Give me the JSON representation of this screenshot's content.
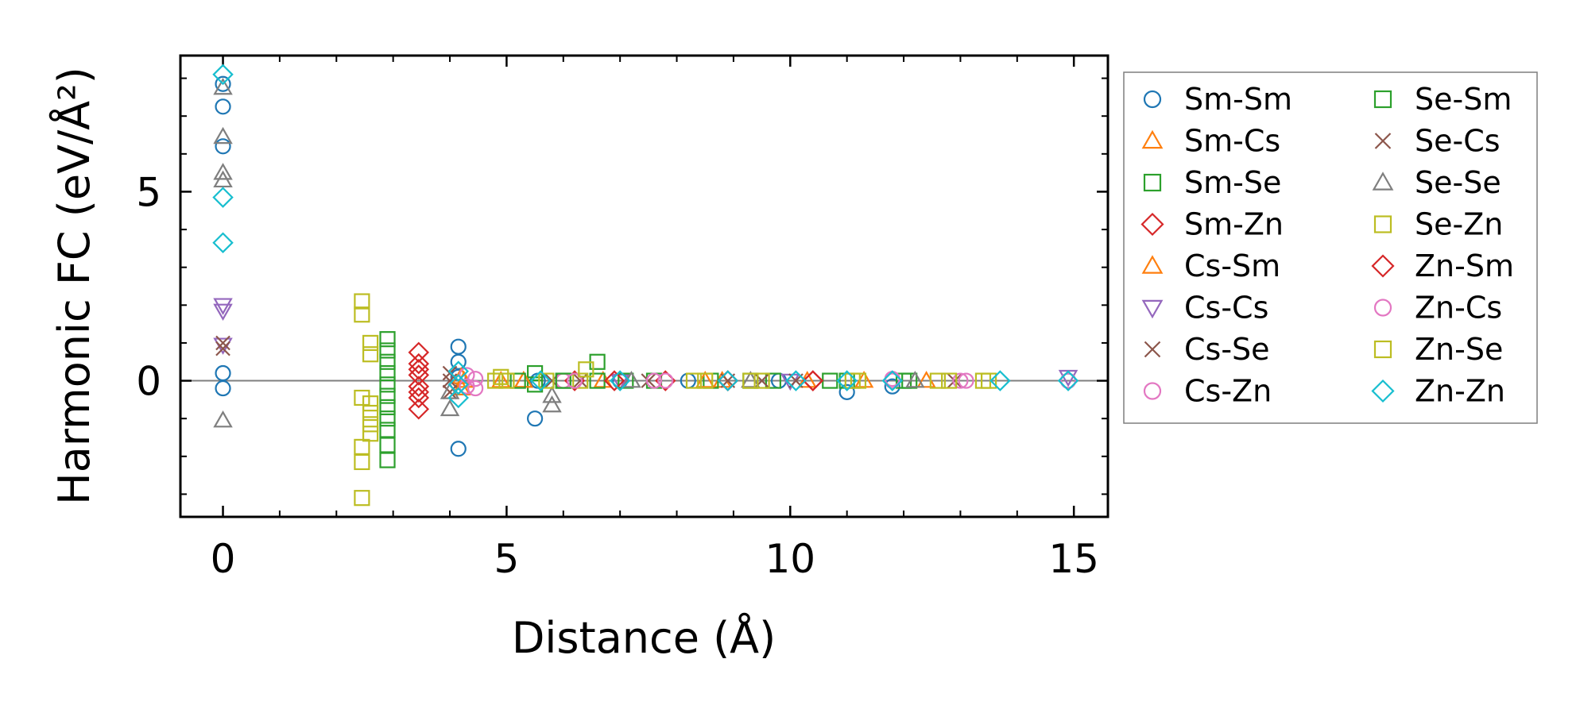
{
  "chart_data": {
    "type": "scatter",
    "title": "",
    "xlabel": "Distance (Å)",
    "ylabel": "Harmonic FC (eV/Å²)",
    "xlim": [
      -0.75,
      15.6
    ],
    "ylim": [
      -3.6,
      8.6
    ],
    "xticks": [
      0,
      5,
      10,
      15
    ],
    "xtick_labels": [
      "0",
      "5",
      "10",
      "15"
    ],
    "yticks": [
      0,
      5
    ],
    "ytick_labels": [
      "0",
      "5"
    ],
    "zero_line": true,
    "grid": false,
    "legend_location": "outside-right",
    "series": [
      {
        "name": "Sm-Sm",
        "marker": "circle",
        "color": "#1f77b4",
        "points": [
          [
            0,
            7.85
          ],
          [
            0,
            7.25
          ],
          [
            0,
            6.2
          ],
          [
            0,
            0.2
          ],
          [
            0,
            -0.2
          ],
          [
            4.15,
            0.9
          ],
          [
            4.15,
            0.5
          ],
          [
            4.15,
            0.1
          ],
          [
            4.15,
            -1.8
          ],
          [
            5.5,
            -1.0
          ],
          [
            5.55,
            0
          ],
          [
            7.0,
            0
          ],
          [
            8.2,
            0
          ],
          [
            9.8,
            0
          ],
          [
            11.0,
            -0.3
          ],
          [
            11.8,
            -0.15
          ],
          [
            14.9,
            0
          ]
        ]
      },
      {
        "name": "Sm-Cs",
        "marker": "triangle-up",
        "color": "#ff7f0e",
        "points": [
          [
            4.2,
            0.1
          ],
          [
            4.2,
            -0.2
          ],
          [
            4.9,
            0
          ],
          [
            5.3,
            0
          ],
          [
            6.7,
            0
          ],
          [
            8.8,
            0
          ],
          [
            10.3,
            0
          ],
          [
            12.4,
            0
          ]
        ]
      },
      {
        "name": "Sm-Se",
        "marker": "square",
        "color": "#2ca02c",
        "points": [
          [
            2.9,
            1.1
          ],
          [
            2.9,
            0.8
          ],
          [
            2.9,
            0.5
          ],
          [
            2.9,
            0.2
          ],
          [
            2.9,
            -0.1
          ],
          [
            2.9,
            -0.4
          ],
          [
            2.9,
            -0.7
          ],
          [
            2.9,
            -1.0
          ],
          [
            2.9,
            -1.3
          ],
          [
            2.9,
            -1.7
          ],
          [
            2.9,
            -2.1
          ],
          [
            5.5,
            0.2
          ],
          [
            5.5,
            -0.1
          ],
          [
            6.0,
            0
          ],
          [
            6.6,
            0
          ],
          [
            7.6,
            0
          ],
          [
            8.6,
            0
          ],
          [
            9.7,
            0
          ],
          [
            10.7,
            0
          ],
          [
            12.0,
            0
          ]
        ]
      },
      {
        "name": "Sm-Zn",
        "marker": "diamond",
        "color": "#d62728",
        "points": [
          [
            3.45,
            0.75
          ],
          [
            3.45,
            0.45
          ],
          [
            3.45,
            0.15
          ],
          [
            3.45,
            -0.15
          ],
          [
            3.45,
            -0.45
          ],
          [
            3.45,
            -0.75
          ],
          [
            6.2,
            0
          ],
          [
            7.8,
            0
          ],
          [
            8.9,
            0
          ],
          [
            10.4,
            0
          ]
        ]
      },
      {
        "name": "Cs-Sm",
        "marker": "triangle-up",
        "color": "#ff7f0e",
        "points": [
          [
            4.25,
            0
          ],
          [
            5.3,
            0
          ],
          [
            8.5,
            0
          ],
          [
            11.3,
            0
          ]
        ]
      },
      {
        "name": "Cs-Cs",
        "marker": "triangle-down",
        "color": "#9467bd",
        "points": [
          [
            0,
            2.0
          ],
          [
            0,
            1.85
          ],
          [
            0,
            0.95
          ],
          [
            7.0,
            0
          ],
          [
            10.0,
            0
          ],
          [
            14.9,
            0.1
          ]
        ]
      },
      {
        "name": "Cs-Se",
        "marker": "x",
        "color": "#8c564b",
        "points": [
          [
            0,
            1.0
          ],
          [
            0,
            0.85
          ],
          [
            4.0,
            0
          ],
          [
            4.0,
            -0.3
          ],
          [
            5.8,
            0
          ],
          [
            7.5,
            0
          ],
          [
            9.5,
            0
          ],
          [
            12.9,
            0
          ]
        ]
      },
      {
        "name": "Cs-Zn",
        "marker": "circle",
        "color": "#e377c2",
        "points": [
          [
            4.3,
            0.15
          ],
          [
            4.3,
            -0.15
          ],
          [
            4.45,
            0.05
          ],
          [
            6.0,
            0
          ],
          [
            7.8,
            0
          ],
          [
            11.8,
            0
          ],
          [
            13.1,
            0
          ],
          [
            14.9,
            0
          ]
        ]
      },
      {
        "name": "Se-Sm",
        "marker": "square",
        "color": "#2ca02c",
        "points": [
          [
            5.2,
            0
          ],
          [
            6.0,
            0
          ],
          [
            6.6,
            0.5
          ],
          [
            7.1,
            0
          ],
          [
            9.3,
            0
          ],
          [
            11.0,
            0
          ],
          [
            12.1,
            0
          ]
        ]
      },
      {
        "name": "Se-Cs",
        "marker": "x",
        "color": "#8c564b",
        "points": [
          [
            4.0,
            0.2
          ],
          [
            6.3,
            0
          ],
          [
            8.9,
            0
          ],
          [
            10.1,
            0
          ]
        ]
      },
      {
        "name": "Se-Se",
        "marker": "triangle-up",
        "color": "#7f7f7f",
        "points": [
          [
            0,
            7.75
          ],
          [
            0,
            6.45
          ],
          [
            0,
            5.5
          ],
          [
            0,
            5.3
          ],
          [
            0,
            -1.05
          ],
          [
            4.0,
            -0.3
          ],
          [
            4.0,
            -0.75
          ],
          [
            5.8,
            -0.4
          ],
          [
            5.8,
            -0.65
          ],
          [
            7.2,
            0
          ],
          [
            9.3,
            0
          ],
          [
            12.2,
            0
          ]
        ]
      },
      {
        "name": "Se-Zn",
        "marker": "square",
        "color": "#bcbd22",
        "points": [
          [
            2.45,
            2.1
          ],
          [
            2.45,
            1.75
          ],
          [
            2.45,
            -0.45
          ],
          [
            2.45,
            -1.75
          ],
          [
            2.45,
            -2.15
          ],
          [
            2.45,
            -3.1
          ],
          [
            4.8,
            0
          ],
          [
            5.0,
            0
          ],
          [
            5.7,
            0
          ],
          [
            6.3,
            0
          ],
          [
            8.3,
            0
          ],
          [
            9.3,
            0
          ],
          [
            11.2,
            0
          ],
          [
            12.6,
            0
          ],
          [
            13.5,
            0
          ]
        ]
      },
      {
        "name": "Zn-Sm",
        "marker": "diamond",
        "color": "#d62728",
        "points": [
          [
            3.45,
            0.3
          ],
          [
            3.45,
            -0.3
          ],
          [
            6.9,
            0
          ],
          [
            8.9,
            0
          ],
          [
            10.4,
            0
          ]
        ]
      },
      {
        "name": "Zn-Cs",
        "marker": "circle",
        "color": "#e377c2",
        "points": [
          [
            4.45,
            -0.2
          ],
          [
            6.2,
            0
          ],
          [
            7.6,
            0
          ],
          [
            11.8,
            0.05
          ],
          [
            13.0,
            0
          ]
        ]
      },
      {
        "name": "Zn-Se",
        "marker": "square",
        "color": "#bcbd22",
        "points": [
          [
            2.6,
            1.0
          ],
          [
            2.6,
            0.7
          ],
          [
            2.6,
            -0.6
          ],
          [
            2.6,
            -0.85
          ],
          [
            2.6,
            -1.15
          ],
          [
            2.6,
            -1.4
          ],
          [
            4.9,
            0.1
          ],
          [
            6.4,
            0.3
          ],
          [
            8.5,
            0
          ],
          [
            9.5,
            0
          ],
          [
            11.1,
            0
          ],
          [
            12.8,
            0
          ],
          [
            13.4,
            0
          ]
        ]
      },
      {
        "name": "Zn-Zn",
        "marker": "diamond",
        "color": "#17becf",
        "points": [
          [
            0,
            8.1
          ],
          [
            0,
            4.85
          ],
          [
            0,
            3.65
          ],
          [
            4.15,
            0.25
          ],
          [
            4.15,
            -0.1
          ],
          [
            4.15,
            -0.45
          ],
          [
            5.6,
            0
          ],
          [
            7.0,
            0
          ],
          [
            8.9,
            0
          ],
          [
            10.1,
            0
          ],
          [
            11.0,
            0
          ],
          [
            11.8,
            0
          ],
          [
            13.7,
            0
          ],
          [
            14.9,
            0
          ]
        ]
      }
    ]
  }
}
